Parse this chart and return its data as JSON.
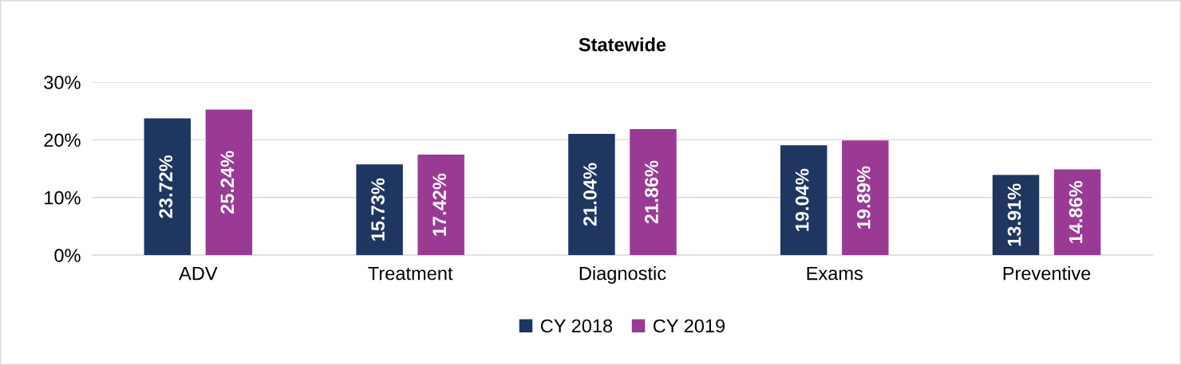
{
  "chart_data": {
    "type": "bar",
    "title": "Statewide",
    "categories": [
      "ADV",
      "Treatment",
      "Diagnostic",
      "Exams",
      "Preventive"
    ],
    "series": [
      {
        "name": "CY 2018",
        "color": "#1f3660",
        "values": [
          23.72,
          15.73,
          21.04,
          19.04,
          13.91
        ],
        "value_labels": [
          "23.72%",
          "15.73%",
          "21.04%",
          "19.04%",
          "13.91%"
        ]
      },
      {
        "name": "CY 2019",
        "color": "#9b3a94",
        "values": [
          25.24,
          17.42,
          21.86,
          19.89,
          14.86
        ],
        "value_labels": [
          "25.24%",
          "17.42%",
          "21.86%",
          "19.89%",
          "14.86%"
        ]
      }
    ],
    "ylim": [
      0,
      30
    ],
    "yticks": [
      {
        "value": 0,
        "label": "0%"
      },
      {
        "value": 10,
        "label": "10%"
      },
      {
        "value": 20,
        "label": "20%"
      },
      {
        "value": 30,
        "label": "30%"
      }
    ],
    "grid": "y",
    "legend": "bottom"
  }
}
